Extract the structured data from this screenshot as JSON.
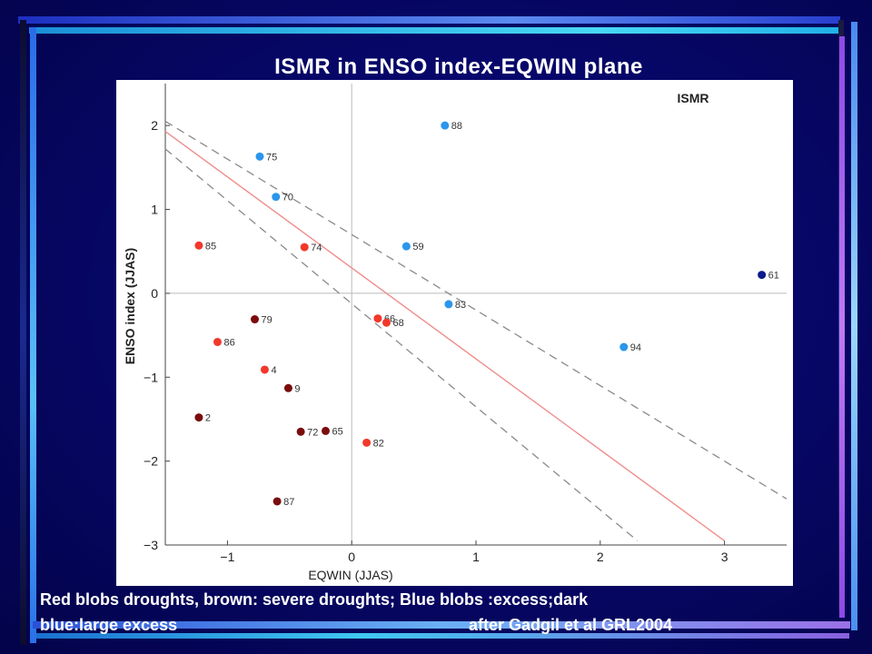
{
  "slide": {
    "title": "ISMR in ENSO index-EQWIN plane",
    "caption_line1": "Red blobs droughts, brown: severe droughts; Blue blobs :excess;dark",
    "caption_line2": "blue:large excess",
    "caption_credit": "after Gadgil et al   GRL2004"
  },
  "colors": {
    "background": "#07076a",
    "frame_gradient_start": "#2233c8",
    "frame_gradient_end": "#b07aee",
    "drought": "#f2382a",
    "severe_drought": "#7a0c0c",
    "excess": "#2a96ec",
    "large_excess": "#0c1b8a",
    "regression_line": "#f08c8c",
    "confidence_band": "#8a8a8a"
  },
  "chart_data": {
    "type": "scatter",
    "title": "ISMR",
    "xlabel": "EQWIN (JJAS)",
    "ylabel": "ENSO index (JJAS)",
    "xlim": [
      -1.5,
      3.5
    ],
    "ylim": [
      -3,
      2.5
    ],
    "xticks": [
      -1,
      0,
      1,
      2,
      3
    ],
    "yticks": [
      -3,
      -2,
      -1,
      0,
      1,
      2
    ],
    "grid": false,
    "zero_lines": true,
    "categories": {
      "drought": "#f2382a",
      "severe_drought": "#7a0c0c",
      "excess": "#2a96ec",
      "large_excess": "#0c1b8a"
    },
    "points": [
      {
        "label": "88",
        "x": 0.75,
        "y": 2.0,
        "category": "excess"
      },
      {
        "label": "75",
        "x": -0.74,
        "y": 1.63,
        "category": "excess"
      },
      {
        "label": "70",
        "x": -0.61,
        "y": 1.15,
        "category": "excess"
      },
      {
        "label": "85",
        "x": -1.23,
        "y": 0.57,
        "category": "drought"
      },
      {
        "label": "74",
        "x": -0.38,
        "y": 0.55,
        "category": "drought"
      },
      {
        "label": "59",
        "x": 0.44,
        "y": 0.56,
        "category": "excess"
      },
      {
        "label": "61",
        "x": 3.3,
        "y": 0.22,
        "category": "large_excess"
      },
      {
        "label": "83",
        "x": 0.78,
        "y": -0.13,
        "category": "excess"
      },
      {
        "label": "79",
        "x": -0.78,
        "y": -0.31,
        "category": "severe_drought"
      },
      {
        "label": "66",
        "x": 0.21,
        "y": -0.3,
        "category": "drought"
      },
      {
        "label": "68",
        "x": 0.28,
        "y": -0.35,
        "category": "drought"
      },
      {
        "label": "86",
        "x": -1.08,
        "y": -0.58,
        "category": "drought"
      },
      {
        "label": "94",
        "x": 2.19,
        "y": -0.64,
        "category": "excess"
      },
      {
        "label": "4",
        "x": -0.7,
        "y": -0.91,
        "category": "drought"
      },
      {
        "label": "9",
        "x": -0.51,
        "y": -1.13,
        "category": "severe_drought"
      },
      {
        "label": "2",
        "x": -1.23,
        "y": -1.48,
        "category": "severe_drought"
      },
      {
        "label": "72",
        "x": -0.41,
        "y": -1.65,
        "category": "severe_drought"
      },
      {
        "label": "65",
        "x": -0.21,
        "y": -1.64,
        "category": "severe_drought"
      },
      {
        "label": "82",
        "x": 0.12,
        "y": -1.78,
        "category": "drought"
      },
      {
        "label": "87",
        "x": -0.6,
        "y": -2.48,
        "category": "severe_drought"
      }
    ],
    "regression_line": {
      "x": [
        -1.5,
        3.0
      ],
      "y": [
        1.93,
        -2.95
      ]
    },
    "confidence_bands": [
      {
        "x": [
          -1.5,
          3.5
        ],
        "y": [
          2.05,
          -2.45
        ]
      },
      {
        "x": [
          -1.5,
          2.3
        ],
        "y": [
          1.72,
          -2.95
        ]
      }
    ]
  }
}
